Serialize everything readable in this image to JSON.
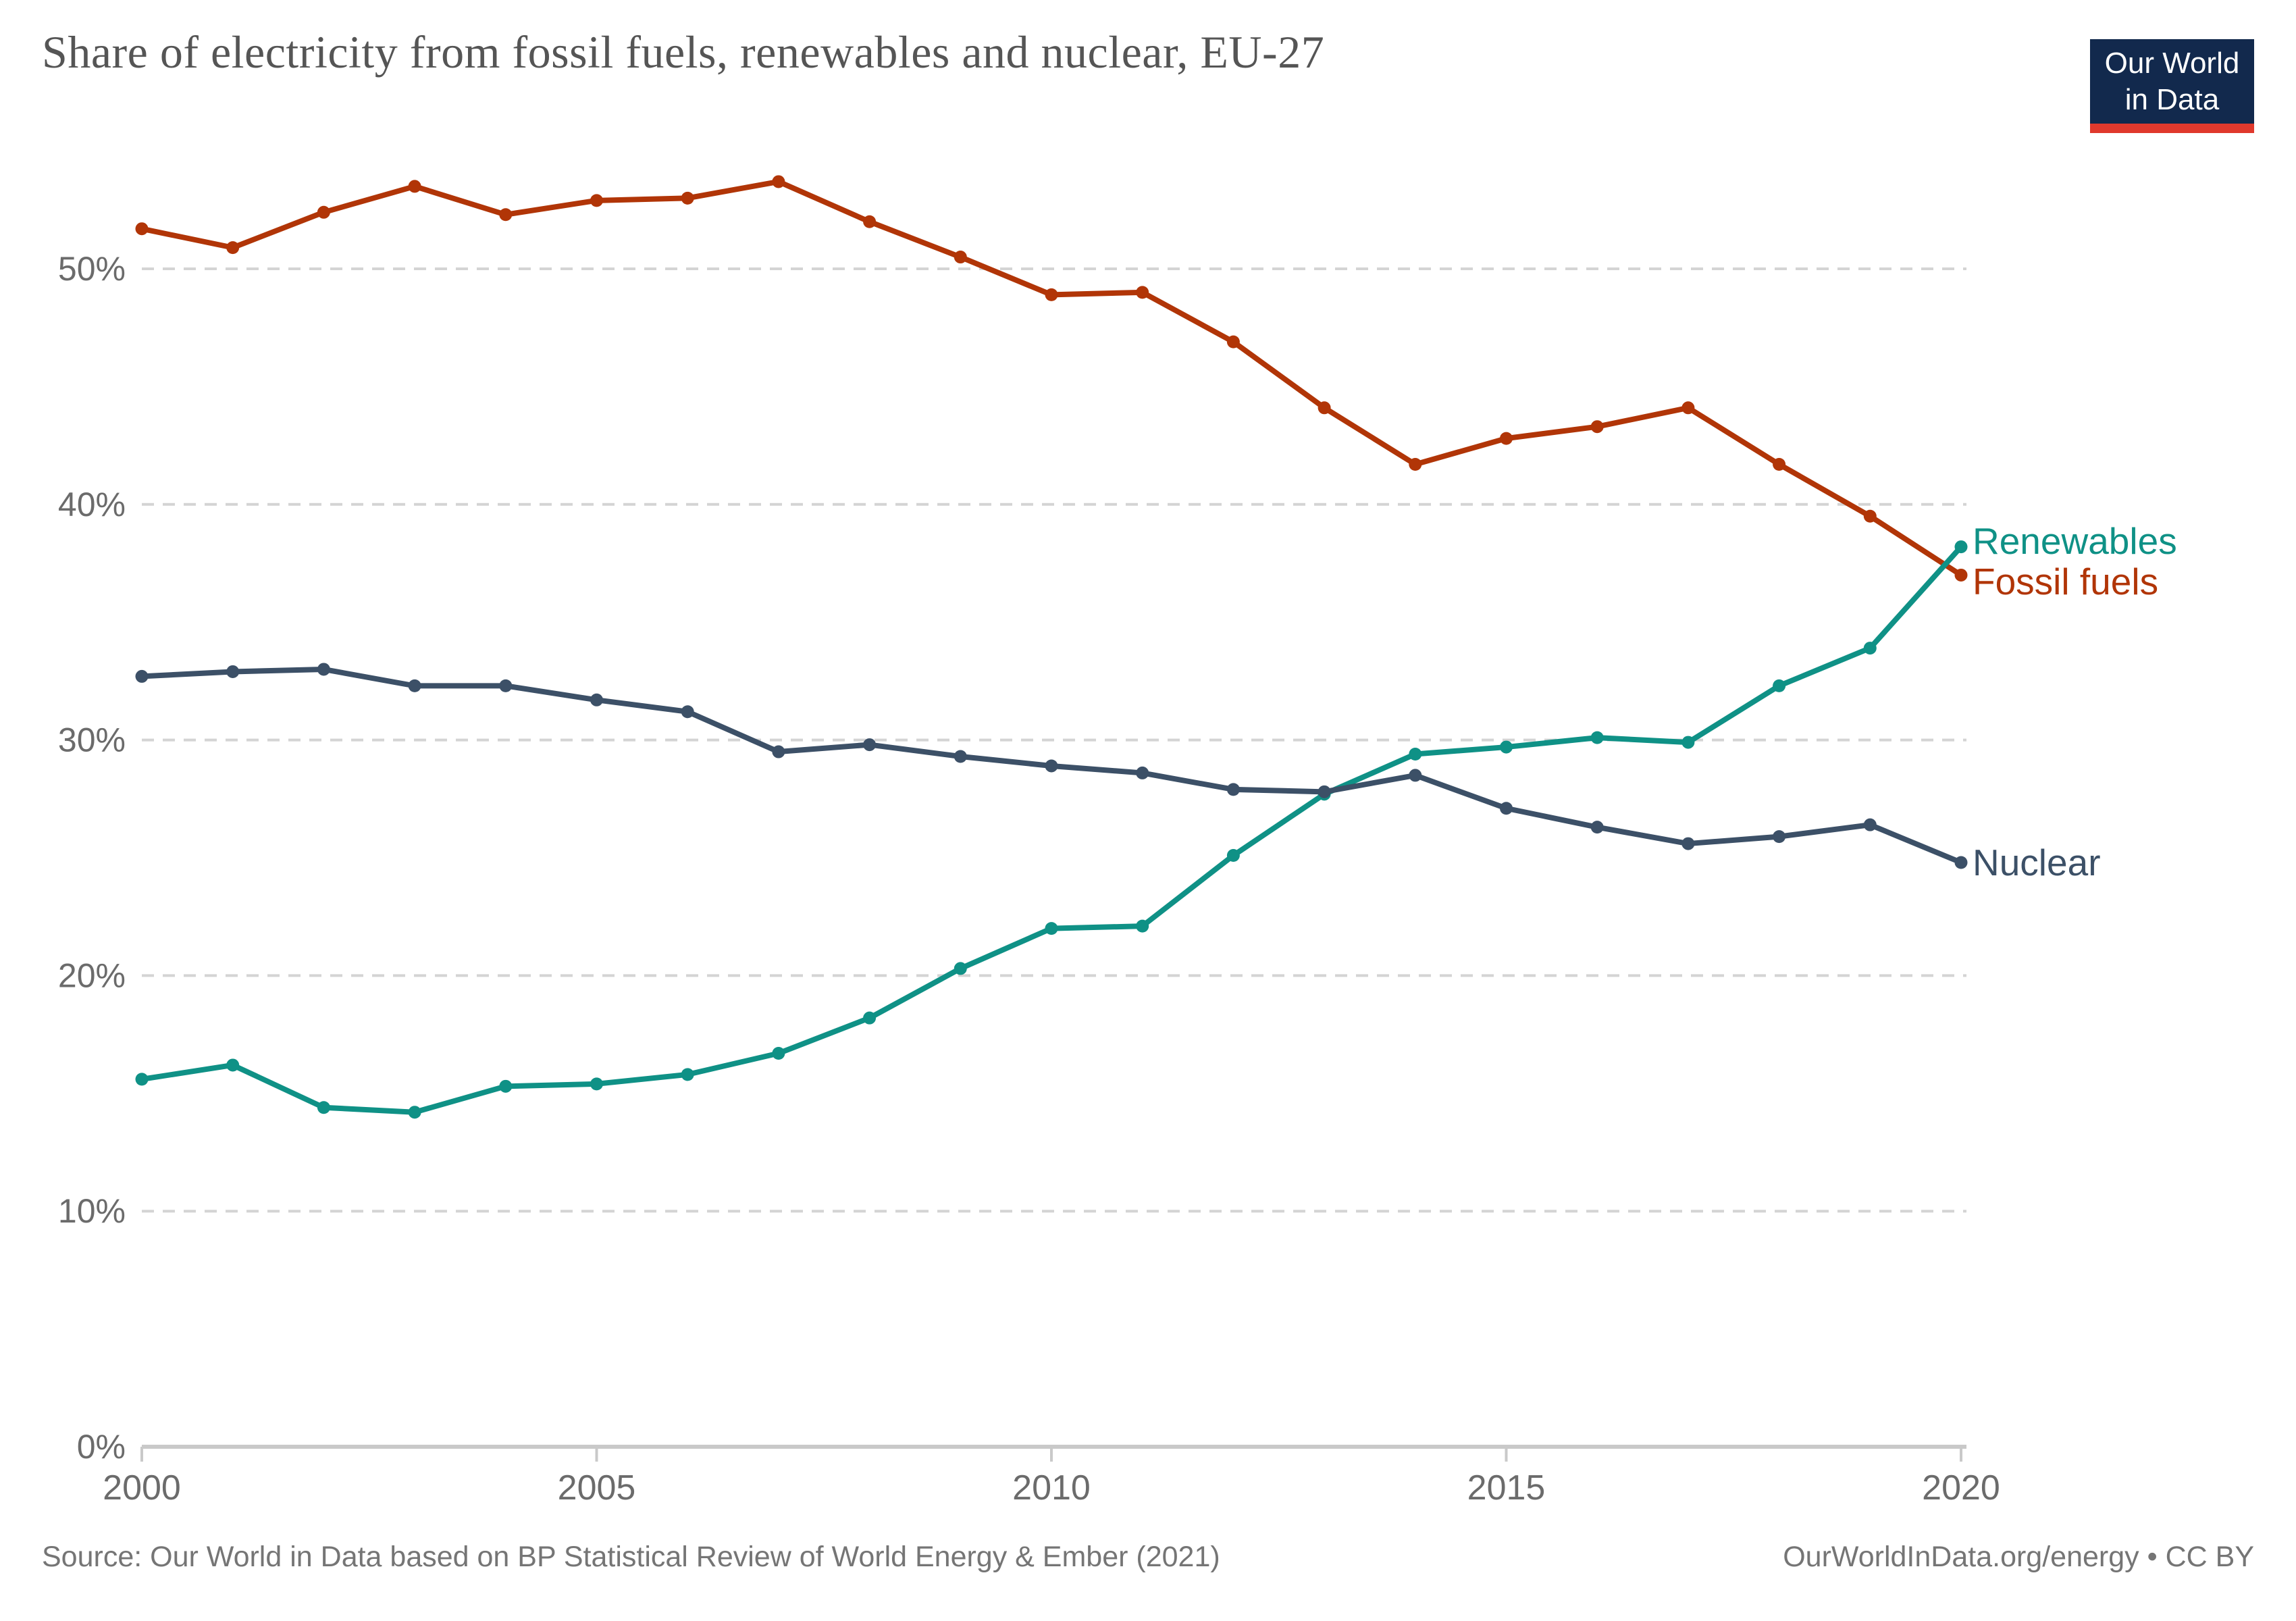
{
  "header": {
    "title": "Share of electricity from fossil fuels, renewables and nuclear, EU-27"
  },
  "logo": {
    "line1": "Our World",
    "line2": "in Data",
    "bg_color": "#12294d",
    "bar_color": "#e0392d",
    "text_color": "#ffffff"
  },
  "chart_data": {
    "type": "line",
    "title": "Share of electricity from fossil fuels, renewables and nuclear, EU-27",
    "xlabel": "",
    "ylabel": "",
    "x": [
      2000,
      2001,
      2002,
      2003,
      2004,
      2005,
      2006,
      2007,
      2008,
      2009,
      2010,
      2011,
      2012,
      2013,
      2014,
      2015,
      2016,
      2017,
      2018,
      2019,
      2020
    ],
    "series": [
      {
        "name": "Fossil fuels",
        "color": "#b13507",
        "values": [
          51.7,
          50.9,
          52.4,
          53.5,
          52.3,
          52.9,
          53.0,
          53.7,
          52.0,
          50.5,
          48.9,
          49.0,
          46.9,
          44.1,
          41.7,
          42.8,
          43.3,
          44.1,
          41.7,
          39.5,
          37.0
        ]
      },
      {
        "name": "Renewables",
        "color": "#0f9186",
        "values": [
          15.6,
          16.2,
          14.4,
          14.2,
          15.3,
          15.4,
          15.8,
          16.7,
          18.2,
          20.3,
          22.0,
          22.1,
          25.1,
          27.7,
          29.4,
          29.7,
          30.1,
          29.9,
          32.3,
          33.9,
          38.2
        ]
      },
      {
        "name": "Nuclear",
        "color": "#3c5067",
        "values": [
          32.7,
          32.9,
          33.0,
          32.3,
          32.3,
          31.7,
          31.2,
          29.5,
          29.8,
          29.3,
          28.9,
          28.6,
          27.9,
          27.8,
          28.5,
          27.1,
          26.3,
          25.6,
          25.9,
          26.4,
          24.8
        ]
      }
    ],
    "ylim": [
      0,
      55
    ],
    "yticks": [
      0,
      10,
      20,
      30,
      40,
      50
    ],
    "ytick_format": "{v}%",
    "xticks": [
      2000,
      2005,
      2010,
      2015,
      2020
    ],
    "grid": "horizontal dashed",
    "legend_position": "right end-of-line labels",
    "grid_color": "#d4d4d4",
    "axis_color": "#c9c9c9",
    "tick_label_color": "#6b6b6b"
  },
  "footer": {
    "source": "Source: Our World in Data based on BP Statistical Review of World Energy & Ember (2021)",
    "license": "OurWorldInData.org/energy • CC BY"
  }
}
